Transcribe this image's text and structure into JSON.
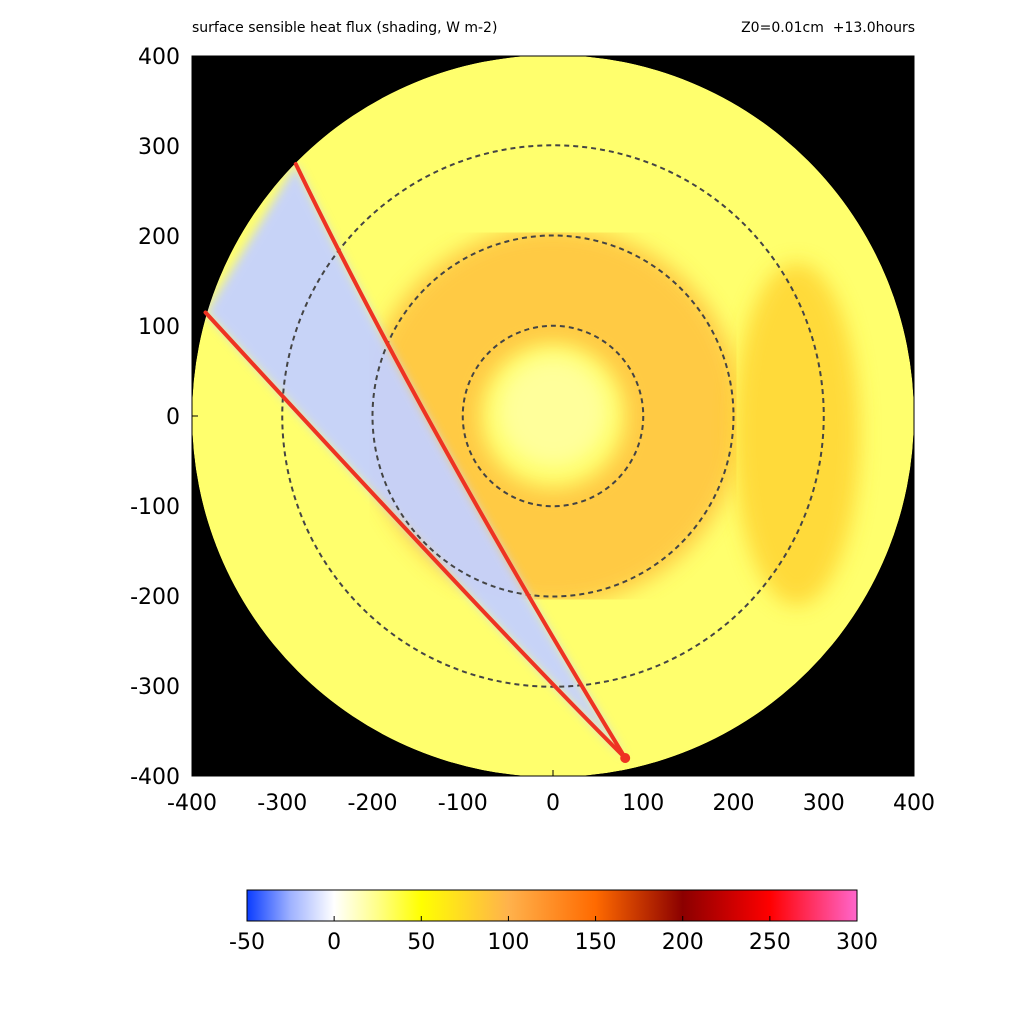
{
  "header": {
    "title_left": "surface sensible heat flux (shading, W m-2)",
    "title_right": "Z0=0.01cm  +13.0hours"
  },
  "chart_data": {
    "type": "heatmap",
    "title": "surface sensible heat flux (shading, W m-2)",
    "annotation": "Z0=0.01cm  +13.0hours",
    "xlim": [
      -400,
      400
    ],
    "ylim": [
      -400,
      400
    ],
    "x_ticks": [
      -400,
      -300,
      -200,
      -100,
      0,
      100,
      200,
      300,
      400
    ],
    "y_ticks": [
      -400,
      -300,
      -200,
      -100,
      0,
      100,
      200,
      300,
      400
    ],
    "domain_radius": 400,
    "background_color": "#000000",
    "reference_circles_radii": [
      100,
      200,
      300
    ],
    "reference_circle_color": "#444444",
    "colorbar": {
      "min": -50,
      "max": 300,
      "ticks": [
        -50,
        0,
        50,
        100,
        150,
        200,
        250,
        300
      ],
      "stops": [
        {
          "value": -50,
          "color": "#0a3cff"
        },
        {
          "value": -25,
          "color": "#9fb2ff"
        },
        {
          "value": 0,
          "color": "#ffffff"
        },
        {
          "value": 25,
          "color": "#ffff88"
        },
        {
          "value": 50,
          "color": "#ffff00"
        },
        {
          "value": 100,
          "color": "#ffb24c"
        },
        {
          "value": 150,
          "color": "#ff6a00"
        },
        {
          "value": 200,
          "color": "#8b0000"
        },
        {
          "value": 250,
          "color": "#ff0000"
        },
        {
          "value": 300,
          "color": "#ff66cc"
        }
      ]
    },
    "field_regions": [
      {
        "name": "background",
        "value": 30
      },
      {
        "name": "rainband-ring",
        "value": 90,
        "r_inner": 80,
        "r_outer": 210
      },
      {
        "name": "outer-band-east",
        "value": 80
      },
      {
        "name": "eye",
        "value": 20,
        "radius": 60
      },
      {
        "name": "cold-wedge",
        "value": -15
      }
    ],
    "wedge_lines": {
      "color": "#ee3322",
      "vertex": [
        80,
        -380
      ],
      "upper_end": [
        -285,
        280
      ],
      "lower_end": [
        -385,
        115
      ]
    }
  }
}
